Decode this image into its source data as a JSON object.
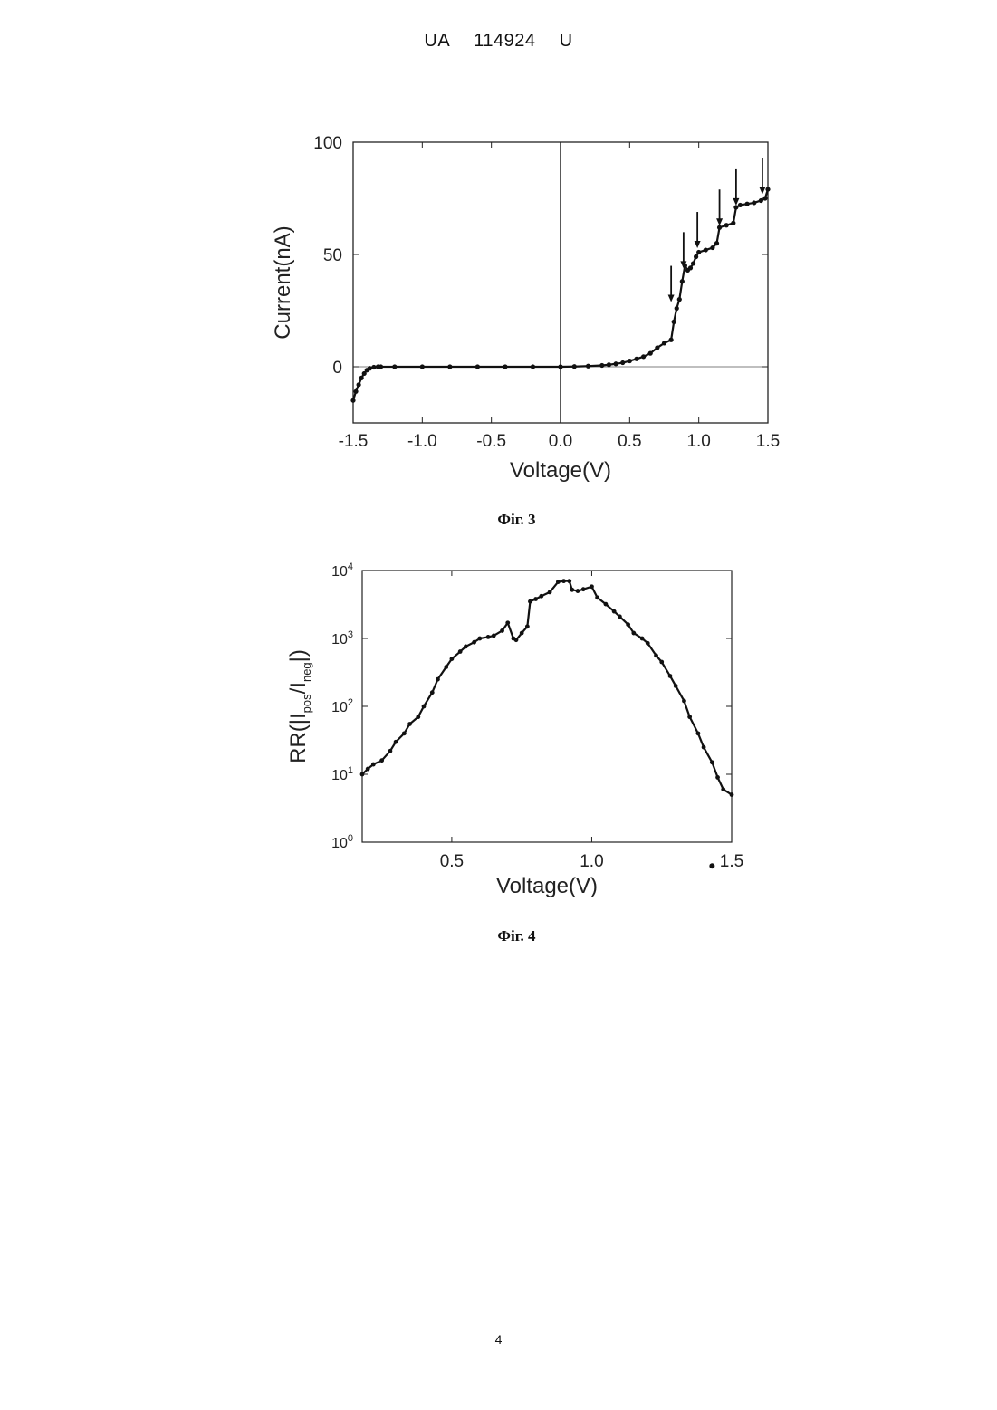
{
  "header": {
    "country": "UA",
    "number": "114924",
    "kind": "U"
  },
  "figures": [
    {
      "caption": "Фіг. 3"
    },
    {
      "caption": "Фіг. 4"
    }
  ],
  "page_number": "4",
  "chart_data": [
    {
      "type": "scatter",
      "title": "",
      "xlabel": "Voltage(V)",
      "ylabel": "Current(nA)",
      "xlim": [
        -1.5,
        1.5
      ],
      "ylim": [
        -25,
        100
      ],
      "xticks": [
        -1.5,
        -1.0,
        -0.5,
        0.0,
        0.5,
        1.0,
        1.5
      ],
      "xtick_labels": [
        "-1.5",
        "-1.0",
        "-0.5",
        "0.0",
        "0.5",
        "1.0",
        "1.5"
      ],
      "yticks": [
        0,
        50,
        100
      ],
      "ytick_labels": [
        "0",
        "50",
        "100"
      ],
      "grid": false,
      "reference_lines": {
        "x": 0,
        "y": 0
      },
      "series": [
        {
          "x": [
            -1.5,
            -1.48,
            -1.46,
            -1.44,
            -1.42,
            -1.4,
            -1.38,
            -1.35,
            -1.32,
            -1.3,
            -1.2,
            -1.0,
            -0.8,
            -0.6,
            -0.4,
            -0.2,
            0.0,
            0.1,
            0.2,
            0.3,
            0.35,
            0.4,
            0.45,
            0.5,
            0.55,
            0.6,
            0.65,
            0.7,
            0.75,
            0.8,
            0.82,
            0.84,
            0.86,
            0.88,
            0.9,
            0.92,
            0.94,
            0.96,
            0.98,
            1.0,
            1.05,
            1.1,
            1.13,
            1.15,
            1.2,
            1.25,
            1.27,
            1.3,
            1.35,
            1.4,
            1.45,
            1.48,
            1.5
          ],
          "y": [
            -15,
            -11,
            -8,
            -5,
            -3,
            -1.5,
            -0.7,
            -0.2,
            0,
            0,
            0,
            0,
            0,
            0,
            0,
            0,
            0,
            0.1,
            0.3,
            0.6,
            0.9,
            1.3,
            1.8,
            2.6,
            3.5,
            4.5,
            6,
            8.5,
            10.5,
            12,
            20,
            26,
            30,
            38,
            45,
            43,
            44,
            46,
            49,
            51,
            52,
            53,
            55,
            62,
            63,
            64,
            71,
            72,
            72.5,
            73,
            74,
            75,
            79
          ]
        }
      ],
      "annotations": [
        {
          "type": "arrow",
          "x": 0.8,
          "y": 28
        },
        {
          "type": "arrow",
          "x": 0.89,
          "y": 43
        },
        {
          "type": "arrow",
          "x": 0.99,
          "y": 52
        },
        {
          "type": "arrow",
          "x": 1.15,
          "y": 62
        },
        {
          "type": "arrow",
          "x": 1.27,
          "y": 71
        },
        {
          "type": "arrow",
          "x": 1.46,
          "y": 76
        }
      ]
    },
    {
      "type": "scatter",
      "title": "",
      "xlabel": "Voltage(V)",
      "ylabel": "RR(|I",
      "ylabel_sub_1": "pos",
      "ylabel_mid": "/I",
      "ylabel_sub_2": "neg",
      "ylabel_end": "|)",
      "xlim": [
        0.18,
        1.5
      ],
      "ylim_log10": [
        0,
        4
      ],
      "y_scale": "log",
      "xticks": [
        0.5,
        1.0,
        1.5
      ],
      "xtick_labels": [
        "0.5",
        "1.0",
        "1.5"
      ],
      "ytick_labels": [
        {
          "base": "10",
          "exp": "0"
        },
        {
          "base": "10",
          "exp": "1"
        },
        {
          "base": "10",
          "exp": "2"
        },
        {
          "base": "10",
          "exp": "3"
        },
        {
          "base": "10",
          "exp": "4"
        }
      ],
      "grid": false,
      "series": [
        {
          "x": [
            0.18,
            0.2,
            0.22,
            0.25,
            0.28,
            0.3,
            0.33,
            0.35,
            0.38,
            0.4,
            0.43,
            0.45,
            0.48,
            0.5,
            0.53,
            0.55,
            0.58,
            0.6,
            0.63,
            0.65,
            0.68,
            0.7,
            0.72,
            0.73,
            0.75,
            0.77,
            0.78,
            0.8,
            0.82,
            0.85,
            0.88,
            0.9,
            0.92,
            0.93,
            0.95,
            0.97,
            1.0,
            1.02,
            1.05,
            1.08,
            1.1,
            1.13,
            1.15,
            1.18,
            1.2,
            1.23,
            1.25,
            1.28,
            1.3,
            1.33,
            1.35,
            1.38,
            1.4,
            1.43,
            1.45,
            1.47,
            1.5
          ],
          "y": [
            10,
            12,
            14,
            16,
            22,
            30,
            40,
            55,
            70,
            100,
            160,
            250,
            380,
            500,
            640,
            760,
            880,
            1000,
            1050,
            1100,
            1300,
            1700,
            1000,
            950,
            1200,
            1500,
            3500,
            3800,
            4200,
            4800,
            6800,
            7000,
            7000,
            5200,
            5000,
            5300,
            5800,
            4000,
            3200,
            2500,
            2100,
            1600,
            1200,
            1000,
            850,
            560,
            450,
            280,
            200,
            120,
            70,
            40,
            25,
            15,
            9,
            6,
            5
          ]
        }
      ],
      "annotations": [
        {
          "type": "dot",
          "x": 1.43,
          "y_log10": -0.35
        }
      ]
    }
  ]
}
